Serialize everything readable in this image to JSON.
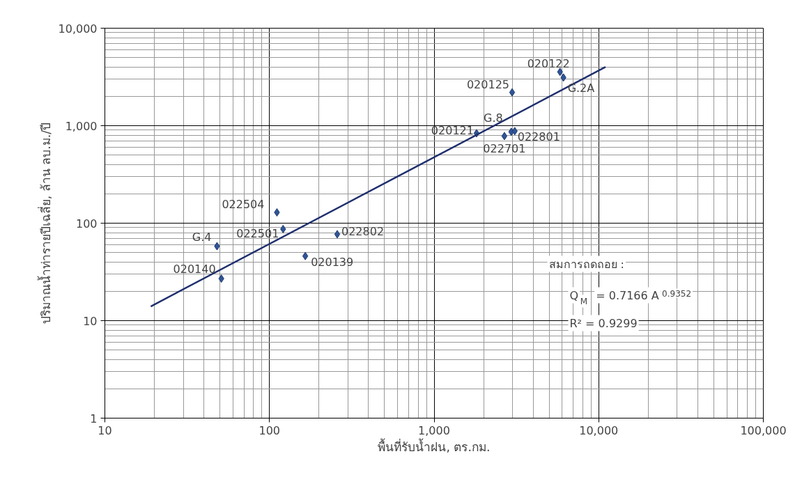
{
  "chart_data": {
    "type": "scatter",
    "xlabel": "พื้นที่รับน้ำฝน, ตร.กม.",
    "ylabel": "ปริมาณน้ำท่ารายปีเฉลี่ย, ล้าน ลบ.ม./ปี",
    "log": "xy",
    "grid": true,
    "xlim": [
      10,
      100000
    ],
    "ylim": [
      1,
      10000
    ],
    "xticks": [
      {
        "value": 10,
        "label": "10"
      },
      {
        "value": 100,
        "label": "100"
      },
      {
        "value": 1000,
        "label": "1,000"
      },
      {
        "value": 10000,
        "label": "10,000"
      },
      {
        "value": 100000,
        "label": "100,000"
      }
    ],
    "yticks": [
      {
        "value": 1,
        "label": "1"
      },
      {
        "value": 10,
        "label": "10"
      },
      {
        "value": 100,
        "label": "100"
      },
      {
        "value": 1000,
        "label": "1,000"
      },
      {
        "value": 10000,
        "label": "10,000"
      }
    ],
    "series": [
      {
        "marker": "diamond",
        "color": "#2f5597",
        "x": [
          111,
          121,
          48,
          51,
          165,
          258,
          1811,
          2673,
          2944,
          3090,
          2979,
          5821,
          6106
        ],
        "values": [
          129,
          87,
          58,
          27,
          46,
          77,
          836,
          782,
          865,
          879,
          2197,
          3564,
          3119
        ]
      },
      {
        "type": "line",
        "color": "#1f2f6e",
        "x": [
          19,
          11000
        ],
        "values": [
          14,
          4000
        ]
      }
    ],
    "annotations": [
      {
        "text": "022504",
        "x": 111,
        "y": 129
      },
      {
        "text": "022501",
        "x": 121,
        "y": 87
      },
      {
        "text": "G.4",
        "x": 48,
        "y": 58
      },
      {
        "text": "020140",
        "x": 51,
        "y": 27
      },
      {
        "text": "020139",
        "x": 165,
        "y": 46
      },
      {
        "text": "022802",
        "x": 258,
        "y": 77
      },
      {
        "text": "020121",
        "x": 1811,
        "y": 836
      },
      {
        "text": "022701",
        "x": 2673,
        "y": 782
      },
      {
        "text": "G.8",
        "x": 2944,
        "y": 865
      },
      {
        "text": "022801",
        "x": 3090,
        "y": 879
      },
      {
        "text": "020125",
        "x": 2979,
        "y": 2197
      },
      {
        "text": "020122",
        "x": 5821,
        "y": 3564
      },
      {
        "text": "G.2A",
        "x": 6106,
        "y": 3119
      },
      "สมการถดถอย :",
      "Q$_{M}$ = 0.7166 A$^{0.9352}$",
      "R² = 0.9299"
    ]
  }
}
